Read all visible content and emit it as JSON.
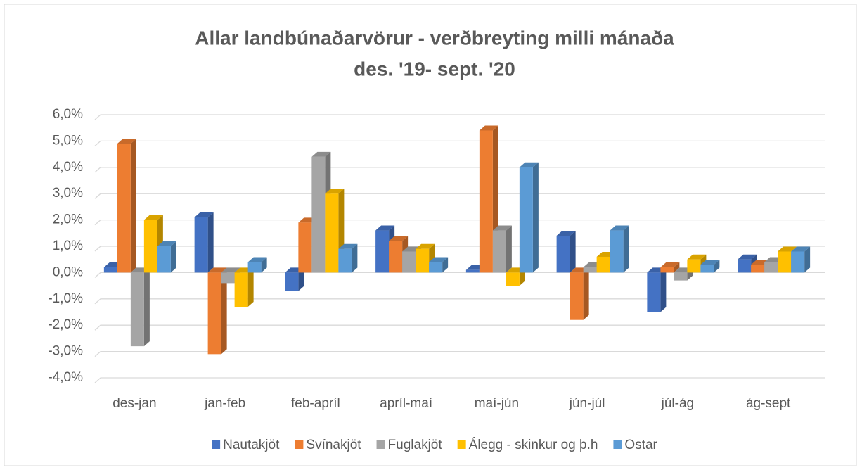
{
  "chart_data": {
    "type": "bar",
    "title": "Allar landbúnaðarvörur - verðbreyting milli mánaða",
    "subtitle": "des. '19- sept. '20",
    "categories": [
      "des-jan",
      "jan-feb",
      "feb-apríl",
      "apríl-maí",
      "maí-jún",
      "jún-júl",
      "júl-ág",
      "ág-sept"
    ],
    "series": [
      {
        "name": "Nautakjöt",
        "color": "#4472c4",
        "values": [
          0.2,
          2.1,
          -0.7,
          1.6,
          0.1,
          1.4,
          -1.5,
          0.5
        ]
      },
      {
        "name": "Svínakjöt",
        "color": "#ed7d31",
        "values": [
          4.9,
          -3.1,
          1.9,
          1.2,
          5.4,
          -1.8,
          0.2,
          0.3
        ]
      },
      {
        "name": "Fuglakjöt",
        "color": "#a5a5a5",
        "values": [
          -2.8,
          -0.4,
          4.4,
          0.8,
          1.6,
          0.2,
          -0.3,
          0.4
        ]
      },
      {
        "name": "Álegg - skinkur og þ.h",
        "color": "#ffc000",
        "values": [
          2.0,
          -1.3,
          3.0,
          0.9,
          -0.5,
          0.6,
          0.5,
          0.8
        ]
      },
      {
        "name": "Ostar",
        "color": "#5b9bd5",
        "values": [
          1.0,
          0.4,
          0.9,
          0.4,
          4.0,
          1.6,
          0.3,
          0.8
        ]
      }
    ],
    "ylim": [
      -4,
      6
    ],
    "yticks": [
      {
        "value": 6,
        "label": "6,0%"
      },
      {
        "value": 5,
        "label": "5,0%"
      },
      {
        "value": 4,
        "label": "4,0%"
      },
      {
        "value": 3,
        "label": "3,0%"
      },
      {
        "value": 2,
        "label": "2,0%"
      },
      {
        "value": 1,
        "label": "1,0%"
      },
      {
        "value": 0,
        "label": "0,0%"
      },
      {
        "value": -1,
        "label": "-1,0%"
      },
      {
        "value": -2,
        "label": "-2,0%"
      },
      {
        "value": -3,
        "label": "-3,0%"
      },
      {
        "value": -4,
        "label": "-4,0%"
      }
    ],
    "grid": true,
    "legend": "bottom"
  }
}
